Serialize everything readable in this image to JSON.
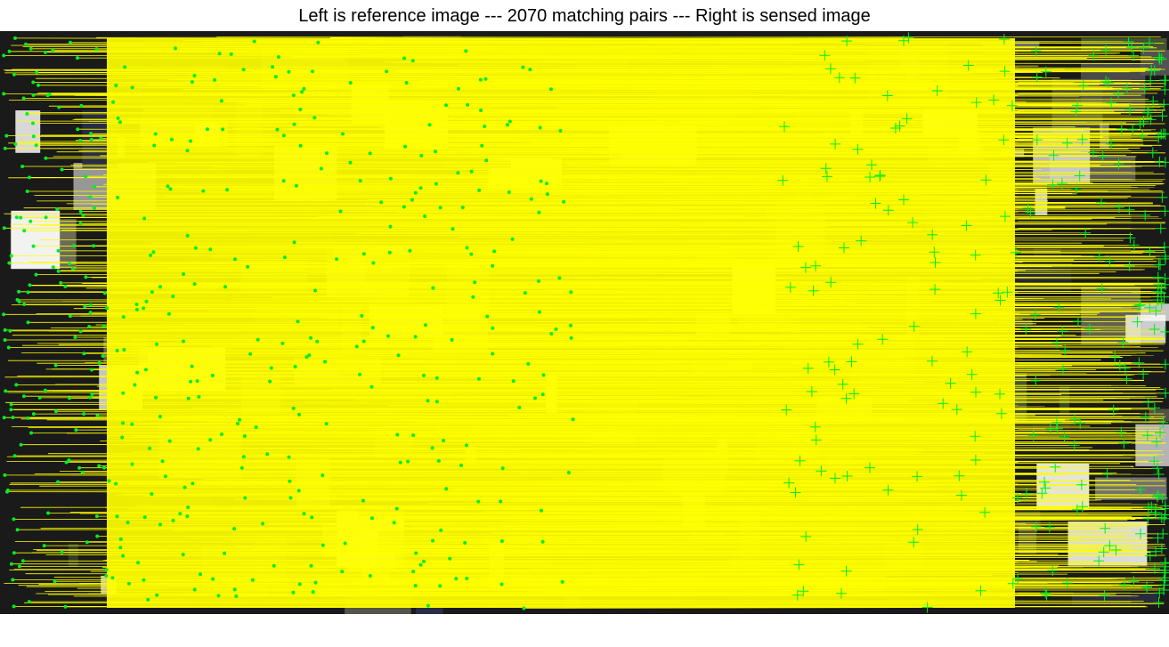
{
  "figure": {
    "title": "Left is reference image --- 2070 matching pairs --- Right is sensed image"
  },
  "colors": {
    "match_line": "#ffff00",
    "keypoint": "#00ee22",
    "background": "#ffffff",
    "image_base": "#1a1a1a"
  },
  "left_panel": {
    "marker": "dot-icon"
  },
  "right_panel": {
    "marker": "plus-icon"
  }
}
